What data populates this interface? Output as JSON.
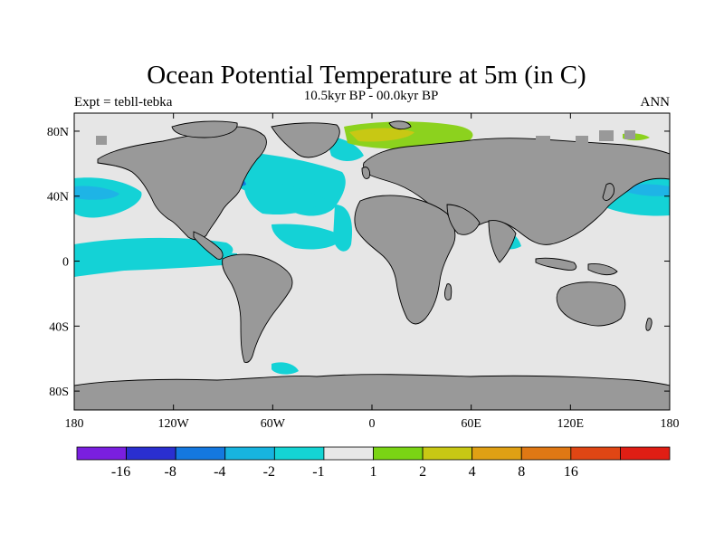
{
  "title": "Ocean Potential Temperature at 5m (in C)",
  "subtitle_left": "Expt = tebll-tebka",
  "subtitle_center": "10.5kyr BP - 00.0kyr BP",
  "subtitle_right": "ANN",
  "y_ticks": [
    {
      "label": "80N",
      "lat": 80
    },
    {
      "label": "40N",
      "lat": 40
    },
    {
      "label": "0",
      "lat": 0
    },
    {
      "label": "40S",
      "lat": -40
    },
    {
      "label": "80S",
      "lat": -80
    }
  ],
  "x_ticks": [
    {
      "label": "180",
      "lon": -180
    },
    {
      "label": "120W",
      "lon": -120
    },
    {
      "label": "60W",
      "lon": -60
    },
    {
      "label": "0",
      "lon": 0
    },
    {
      "label": "60E",
      "lon": 60
    },
    {
      "label": "120E",
      "lon": 120
    },
    {
      "label": "180",
      "lon": 180
    }
  ],
  "colorbar": {
    "colors": [
      "#7a1fe0",
      "#2a2fd0",
      "#1478e0",
      "#17b4e0",
      "#14d4d4",
      "#e8e8e8",
      "#7ad414",
      "#c8c814",
      "#e0a014",
      "#e07814",
      "#e04614",
      "#e01e14"
    ],
    "labels": [
      "-16",
      "-8",
      "-4",
      "-2",
      "-1",
      "1",
      "2",
      "4",
      "8",
      "16"
    ]
  },
  "colors": {
    "land": "#999999",
    "ocean": "#e6e6e6",
    "cyan": "#14d2d6",
    "lightblue": "#1eb4e6",
    "blue": "#1478e0",
    "green": "#8cd21e",
    "yellow": "#c8c814"
  }
}
